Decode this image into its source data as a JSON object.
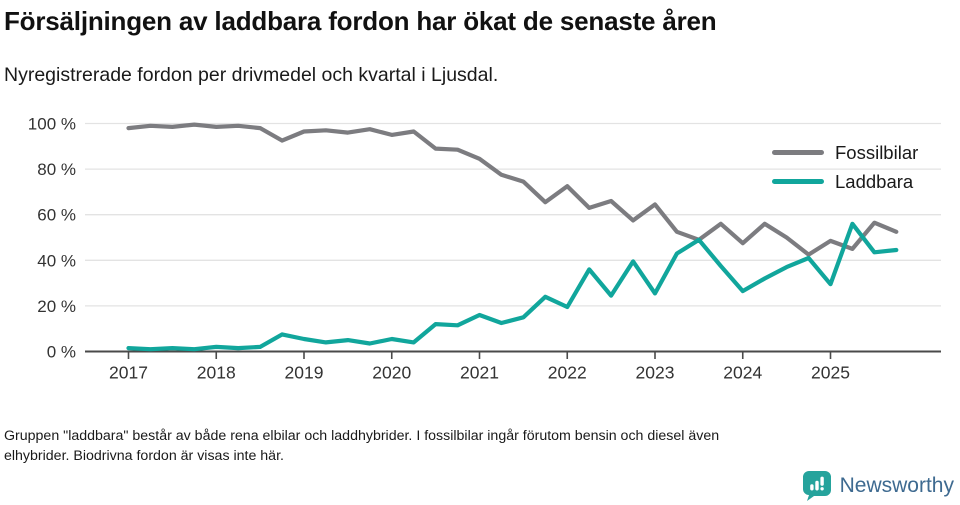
{
  "header": {
    "title": "Försäljningen av laddbara fordon har ökat de senaste åren",
    "subtitle": "Nyregistrerade fordon per drivmedel och kvartal i Ljusdal."
  },
  "legend": [
    {
      "label": "Fossilbilar",
      "color": "#7c7c80"
    },
    {
      "label": "Laddbara",
      "color": "#11a69c"
    }
  ],
  "chart_data": {
    "type": "line",
    "title": "Försäljningen av laddbara fordon har ökat de senaste åren",
    "subtitle": "Nyregistrerade fordon per drivmedel och kvartal i Ljusdal.",
    "unit": "%",
    "ylim": [
      0,
      100
    ],
    "grid": true,
    "legend_position": "top-right",
    "x_tick_labels": [
      "2017",
      "2018",
      "2019",
      "2020",
      "2021",
      "2022",
      "2023",
      "2024",
      "2025"
    ],
    "y_ticks": [
      {
        "label": "0 %",
        "value": 0
      },
      {
        "label": "20 %",
        "value": 20
      },
      {
        "label": "40 %",
        "value": 40
      },
      {
        "label": "60 %",
        "value": 60
      },
      {
        "label": "80 %",
        "value": 80
      },
      {
        "label": "100 %",
        "value": 100
      }
    ],
    "categories": [
      "2017 Q1",
      "2017 Q2",
      "2017 Q3",
      "2017 Q4",
      "2018 Q1",
      "2018 Q2",
      "2018 Q3",
      "2018 Q4",
      "2019 Q1",
      "2019 Q2",
      "2019 Q3",
      "2019 Q4",
      "2020 Q1",
      "2020 Q2",
      "2020 Q3",
      "2020 Q4",
      "2021 Q1",
      "2021 Q2",
      "2021 Q3",
      "2021 Q4",
      "2022 Q1",
      "2022 Q2",
      "2022 Q3",
      "2022 Q4",
      "2023 Q1",
      "2023 Q2",
      "2023 Q3",
      "2023 Q4",
      "2024 Q1",
      "2024 Q2",
      "2024 Q3",
      "2024 Q4",
      "2025 Q1",
      "2025 Q2",
      "2025 Q3",
      "2025 Q4"
    ],
    "series": [
      {
        "name": "Fossilbilar",
        "color": "#7c7c80",
        "values": [
          98,
          99,
          98.5,
          99.5,
          98.5,
          99,
          98,
          92.5,
          96.5,
          97,
          96,
          97.5,
          95,
          96.5,
          89,
          88.5,
          84.5,
          77.5,
          74.5,
          65.5,
          72.5,
          63,
          66,
          57.5,
          64.5,
          52.5,
          49,
          56,
          47.5,
          56,
          50,
          42.5,
          48.5,
          45,
          56.5,
          52.5
        ]
      },
      {
        "name": "Laddbara",
        "color": "#11a69c",
        "values": [
          1.5,
          1,
          1.5,
          1,
          2,
          1.5,
          2,
          7.5,
          5.5,
          4,
          5,
          3.5,
          5.5,
          4,
          12,
          11.5,
          16,
          12.5,
          15,
          24,
          19.5,
          36,
          24.5,
          39.5,
          25.5,
          43,
          49,
          37.5,
          26.5,
          32,
          37,
          41,
          29.5,
          56,
          43.5,
          44.5
        ]
      }
    ]
  },
  "footer": {
    "note_line1": "Gruppen \"laddbara\" består av både rena elbilar och laddhybrider. I fossilbilar ingår förutom bensin och diesel även",
    "note_line2": "elhybrider. Biodrivna fordon är visas inte här.",
    "brand": "Newsworthy"
  },
  "colors": {
    "grid": "#e3e3e3",
    "axis": "#4a4a4a",
    "tick_text": "#333333",
    "brand_teal": "#25a39c",
    "brand_text": "#3e6a90"
  }
}
